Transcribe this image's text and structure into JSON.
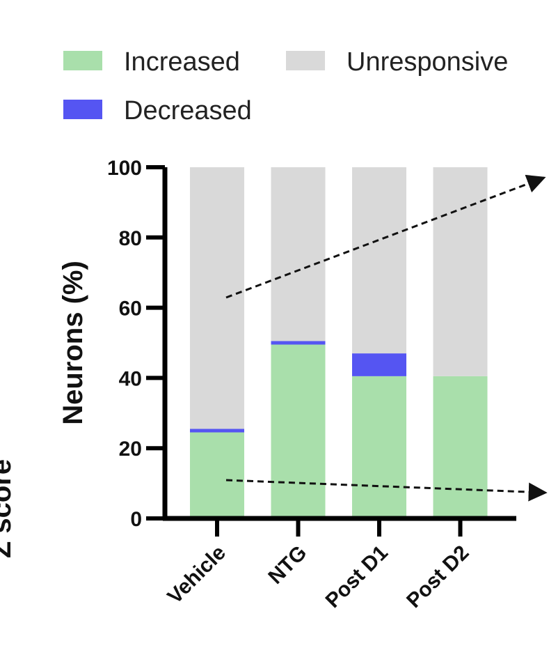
{
  "chart_data": {
    "type": "bar",
    "stacked": true,
    "categories": [
      "Vehicle",
      "NTG",
      "Post D1",
      "Post D2"
    ],
    "series": [
      {
        "name": "Increased",
        "color": "#a9dfab",
        "values": [
          24.5,
          49.5,
          40.5,
          40.5
        ]
      },
      {
        "name": "Decreased",
        "color": "#5555f2",
        "values": [
          1,
          1,
          6.5,
          0
        ]
      },
      {
        "name": "Unresponsive",
        "color": "#d9d9d9",
        "values": [
          74.5,
          49.5,
          53,
          59.5
        ]
      }
    ],
    "ylabel": "Neurons (%)",
    "ylim": [
      0,
      100
    ],
    "yticks": [
      0,
      20,
      40,
      60,
      80,
      100
    ],
    "legend": [
      {
        "label": "Increased",
        "color": "#a9dfab"
      },
      {
        "label": "Unresponsive",
        "color": "#d9d9d9"
      },
      {
        "label": "Decreased",
        "color": "#5555f2"
      }
    ],
    "side_label": "Z score"
  }
}
